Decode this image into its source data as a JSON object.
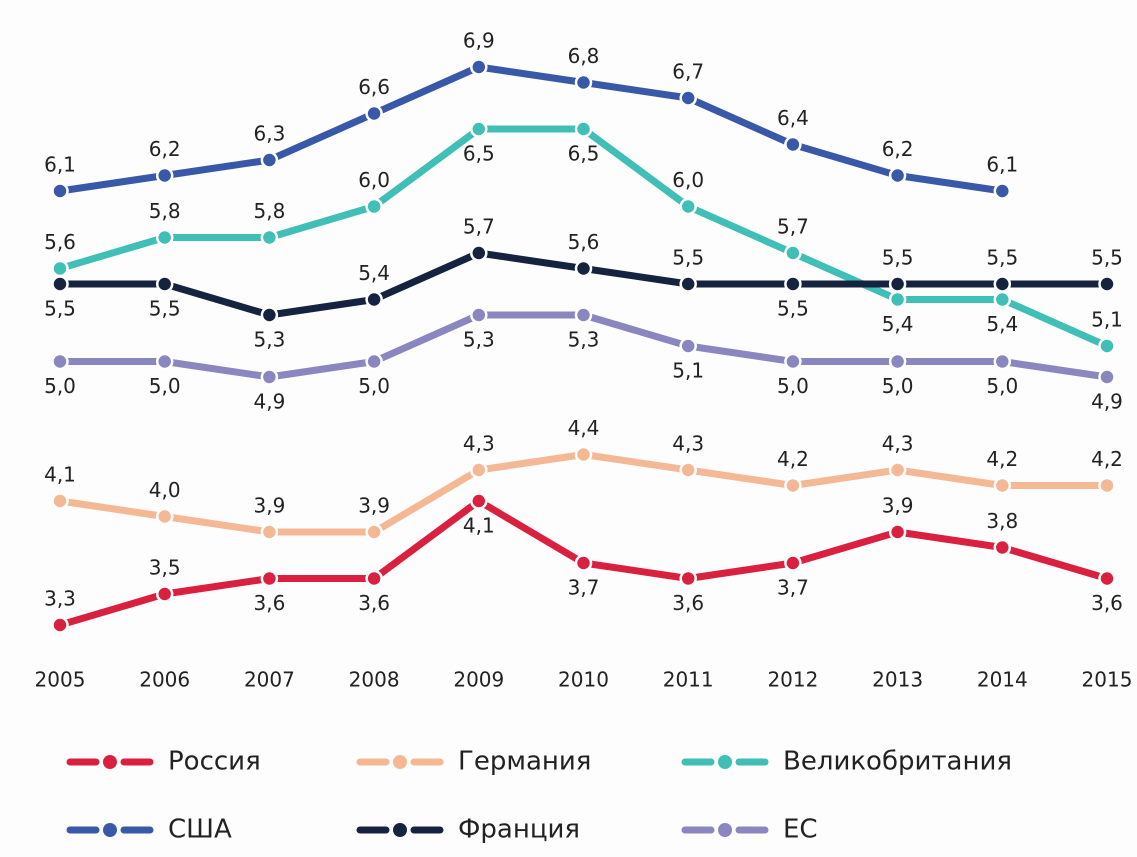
{
  "chart_data": {
    "type": "line",
    "x": [
      2005,
      2006,
      2007,
      2008,
      2009,
      2010,
      2011,
      2012,
      2013,
      2014,
      2015
    ],
    "xlim": [
      2005,
      2015
    ],
    "xticks": [
      2005,
      2006,
      2007,
      2008,
      2009,
      2010,
      2011,
      2012,
      2013,
      2014,
      2015
    ],
    "ylim": [
      3,
      7
    ],
    "legend": "bottom",
    "series": [
      {
        "name": "Россия",
        "color": "#d9213f",
        "values": [
          3.3,
          3.5,
          3.6,
          3.6,
          4.1,
          3.7,
          3.6,
          3.7,
          3.9,
          3.8,
          3.6
        ],
        "value_labels": [
          "3,3",
          "3,5",
          "3,6",
          "3,6",
          "4,1",
          "3,7",
          "3,6",
          "3,7",
          "3,9",
          "3,8",
          "3,6"
        ]
      },
      {
        "name": "Германия",
        "color": "#f5b895",
        "values": [
          4.1,
          4.0,
          3.9,
          3.9,
          4.3,
          4.4,
          4.3,
          4.2,
          4.3,
          4.2,
          4.2
        ],
        "value_labels": [
          "4,1",
          "4,0",
          "3,9",
          "3,9",
          "4,3",
          "4,4",
          "4,3",
          "4,2",
          "4,3",
          "4,2",
          "4,2"
        ]
      },
      {
        "name": "Великобритания",
        "color": "#3fbfb5",
        "values": [
          5.6,
          5.8,
          5.8,
          6.0,
          6.5,
          6.5,
          6.0,
          5.7,
          5.4,
          5.4,
          5.1
        ],
        "value_labels": [
          "5,6",
          "5,8",
          "5,8",
          "6,0",
          "6,5",
          "6,5",
          "6,0",
          "5,7",
          "5,4",
          "5,4",
          "5,1"
        ]
      },
      {
        "name": "США",
        "color": "#3a58a8",
        "values": [
          6.1,
          6.2,
          6.3,
          6.6,
          6.9,
          6.8,
          6.7,
          6.4,
          6.2,
          6.1,
          null
        ],
        "value_labels": [
          "6,1",
          "6,2",
          "6,3",
          "6,6",
          "6,9",
          "6,8",
          "6,7",
          "6,4",
          "6,2",
          "6,1",
          null
        ]
      },
      {
        "name": "Франция",
        "color": "#16233f",
        "values": [
          5.5,
          5.5,
          5.3,
          5.4,
          5.7,
          5.6,
          5.5,
          5.5,
          5.5,
          5.5,
          5.5
        ],
        "value_labels": [
          "5,5",
          "5,5",
          "5,3",
          "5,4",
          "5,7",
          "5,6",
          "5,5",
          "5,5",
          "5,5",
          "5,5",
          "5,5"
        ]
      },
      {
        "name": "ЕС",
        "color": "#8a86bf",
        "values": [
          5.0,
          5.0,
          4.9,
          5.0,
          5.3,
          5.3,
          5.1,
          5.0,
          5.0,
          5.0,
          4.9
        ],
        "value_labels": [
          "5,0",
          "5,0",
          "4,9",
          "5,0",
          "5,3",
          "5,3",
          "5,1",
          "5,0",
          "5,0",
          "5,0",
          "4,9"
        ]
      }
    ]
  }
}
